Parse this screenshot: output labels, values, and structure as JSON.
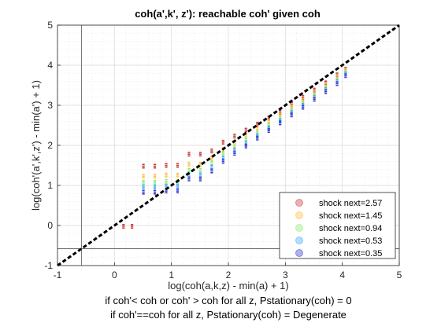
{
  "chart_data": {
    "type": "scatter",
    "title": "coh(a',k', z'): reachable coh' given coh",
    "xlabel": "log(coh(a,k,z) - min(a) + 1)",
    "ylabel": "log(coh'(a',k',z') - min(a') + 1)",
    "xlim": [
      -1,
      5
    ],
    "ylim": [
      -1,
      5
    ],
    "xticks": [
      "-1",
      "0",
      "1",
      "2",
      "3",
      "4",
      "5"
    ],
    "yticks": [
      "-1",
      "0",
      "1",
      "2",
      "3",
      "4",
      "5"
    ],
    "grid": true,
    "legend_position": "bottom-right",
    "notes": [
      "if coh'< coh or coh' > coh for all z, Pstationary(coh) = 0",
      "if coh'==coh for all z, Pstationary(coh) = Degenerate"
    ],
    "reference_lines": {
      "diagonal": {
        "from": [
          -1,
          -1
        ],
        "to": [
          5,
          5
        ],
        "style": "dashed-black"
      },
      "vertical_x": -0.58,
      "horizontal_y": -0.58
    },
    "series": [
      {
        "name": "shock next=2.57",
        "color": "#d62728",
        "marker_color": "#cc3a3a",
        "points": [
          [
            0.15,
            0.0
          ],
          [
            0.3,
            0.0
          ],
          [
            0.5,
            1.5
          ],
          [
            0.7,
            1.5
          ],
          [
            0.9,
            1.52
          ],
          [
            1.1,
            1.52
          ],
          [
            1.3,
            1.8
          ],
          [
            1.5,
            1.8
          ],
          [
            1.7,
            1.88
          ],
          [
            1.9,
            2.1
          ],
          [
            2.1,
            2.25
          ],
          [
            2.3,
            2.4
          ],
          [
            2.5,
            2.55
          ],
          [
            2.7,
            2.7
          ],
          [
            2.9,
            2.85
          ],
          [
            3.1,
            3.05
          ],
          [
            3.3,
            3.22
          ],
          [
            3.5,
            3.4
          ],
          [
            3.7,
            3.58
          ],
          [
            3.9,
            3.78
          ],
          [
            4.05,
            3.92
          ]
        ]
      },
      {
        "name": "shock next=1.45",
        "color": "#ffb000",
        "marker_color": "#ffc040",
        "points": [
          [
            0.5,
            1.25
          ],
          [
            0.7,
            1.25
          ],
          [
            0.9,
            1.28
          ],
          [
            1.1,
            1.28
          ],
          [
            1.3,
            1.55
          ],
          [
            1.5,
            1.55
          ],
          [
            1.7,
            1.7
          ],
          [
            1.9,
            1.92
          ],
          [
            2.1,
            2.08
          ],
          [
            2.3,
            2.25
          ],
          [
            2.5,
            2.42
          ],
          [
            2.7,
            2.6
          ],
          [
            2.9,
            2.78
          ],
          [
            3.1,
            2.97
          ],
          [
            3.3,
            3.15
          ],
          [
            3.5,
            3.33
          ],
          [
            3.7,
            3.52
          ],
          [
            3.9,
            3.72
          ],
          [
            4.05,
            3.88
          ]
        ]
      },
      {
        "name": "shock next=0.94",
        "color": "#7cd650",
        "marker_color": "#8ee870",
        "points": [
          [
            0.5,
            1.1
          ],
          [
            0.7,
            1.1
          ],
          [
            0.9,
            1.12
          ],
          [
            1.1,
            1.12
          ],
          [
            1.3,
            1.4
          ],
          [
            1.5,
            1.4
          ],
          [
            1.7,
            1.58
          ],
          [
            1.9,
            1.8
          ],
          [
            2.1,
            1.98
          ],
          [
            2.3,
            2.15
          ],
          [
            2.5,
            2.33
          ],
          [
            2.7,
            2.52
          ],
          [
            2.9,
            2.7
          ],
          [
            3.1,
            2.9
          ],
          [
            3.3,
            3.08
          ],
          [
            3.5,
            3.27
          ],
          [
            3.7,
            3.46
          ],
          [
            3.9,
            3.66
          ],
          [
            4.05,
            3.84
          ]
        ]
      },
      {
        "name": "shock next=0.53",
        "color": "#1e90ff",
        "marker_color": "#41a8ff",
        "points": [
          [
            0.5,
            0.98
          ],
          [
            0.7,
            0.98
          ],
          [
            0.9,
            1.0
          ],
          [
            1.1,
            1.0
          ],
          [
            1.3,
            1.28
          ],
          [
            1.5,
            1.28
          ],
          [
            1.7,
            1.48
          ],
          [
            1.9,
            1.7
          ],
          [
            2.1,
            1.9
          ],
          [
            2.3,
            2.07
          ],
          [
            2.5,
            2.26
          ],
          [
            2.7,
            2.45
          ],
          [
            2.9,
            2.64
          ],
          [
            3.1,
            2.84
          ],
          [
            3.3,
            3.02
          ],
          [
            3.5,
            3.22
          ],
          [
            3.7,
            3.41
          ],
          [
            3.9,
            3.61
          ],
          [
            4.05,
            3.8
          ]
        ]
      },
      {
        "name": "shock next=0.35",
        "color": "#2b2bd6",
        "marker_color": "#3a3ad0",
        "points": [
          [
            0.5,
            0.85
          ],
          [
            0.7,
            0.85
          ],
          [
            0.9,
            0.88
          ],
          [
            1.1,
            0.88
          ],
          [
            1.3,
            1.18
          ],
          [
            1.5,
            1.18
          ],
          [
            1.7,
            1.38
          ],
          [
            1.9,
            1.62
          ],
          [
            2.1,
            1.82
          ],
          [
            2.3,
            2.0
          ],
          [
            2.5,
            2.2
          ],
          [
            2.7,
            2.39
          ],
          [
            2.9,
            2.58
          ],
          [
            3.1,
            2.78
          ],
          [
            3.3,
            2.97
          ],
          [
            3.5,
            3.17
          ],
          [
            3.7,
            3.36
          ],
          [
            3.9,
            3.56
          ],
          [
            4.05,
            3.76
          ]
        ]
      }
    ]
  }
}
